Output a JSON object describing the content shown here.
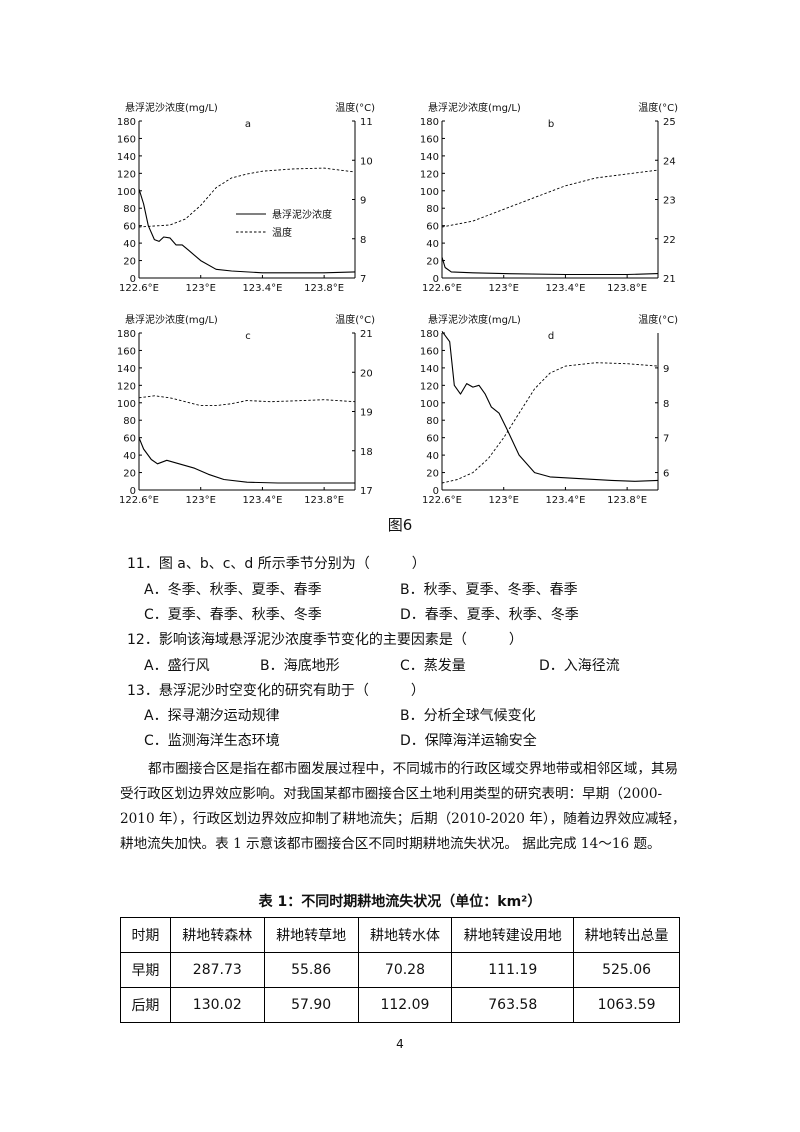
{
  "figure": {
    "caption": "图6",
    "left_axis_title": "悬浮泥沙浓度(mg/L)",
    "right_axis_title": "温度(°C)",
    "legend": {
      "solid": "悬浮泥沙浓度",
      "dashed": "温度"
    }
  },
  "chart_data": [
    {
      "type": "line",
      "panel": "a",
      "ylabel": "悬浮泥沙浓度(mg/L)",
      "y2label": "温度(°C)",
      "xlim": [
        122.6,
        124.0
      ],
      "ylim": [
        0,
        180
      ],
      "y2lim": [
        7,
        11
      ],
      "x_ticks": [
        "122.6°E",
        "123°E",
        "123.4°E",
        "123.8°E"
      ],
      "y_ticks": [
        "0",
        "20",
        "40",
        "60",
        "80",
        "100",
        "120",
        "140",
        "160",
        "180"
      ],
      "y2_ticks": [
        "7",
        "8",
        "9",
        "10",
        "11"
      ],
      "legend": [
        "悬浮泥沙浓度",
        "温度"
      ],
      "series": [
        {
          "name": "悬浮泥沙浓度",
          "axis": "left",
          "style": "solid",
          "points": [
            [
              122.6,
              102
            ],
            [
              122.63,
              85
            ],
            [
              122.66,
              60
            ],
            [
              122.7,
              44
            ],
            [
              122.73,
              42
            ],
            [
              122.76,
              47
            ],
            [
              122.8,
              46
            ],
            [
              122.84,
              38
            ],
            [
              122.88,
              38
            ],
            [
              122.92,
              32
            ],
            [
              123.0,
              20
            ],
            [
              123.1,
              10
            ],
            [
              123.2,
              8
            ],
            [
              123.4,
              6
            ],
            [
              123.6,
              6
            ],
            [
              123.8,
              6
            ],
            [
              124.0,
              7
            ]
          ]
        },
        {
          "name": "温度",
          "axis": "right",
          "style": "dashed",
          "points": [
            [
              122.6,
              8.3
            ],
            [
              122.8,
              8.35
            ],
            [
              122.9,
              8.5
            ],
            [
              123.0,
              8.85
            ],
            [
              123.1,
              9.3
            ],
            [
              123.2,
              9.55
            ],
            [
              123.3,
              9.65
            ],
            [
              123.4,
              9.72
            ],
            [
              123.6,
              9.78
            ],
            [
              123.8,
              9.8
            ],
            [
              124.0,
              9.7
            ]
          ]
        }
      ]
    },
    {
      "type": "line",
      "panel": "b",
      "ylabel": "悬浮泥沙浓度(mg/L)",
      "y2label": "温度(°C)",
      "xlim": [
        122.6,
        124.0
      ],
      "ylim": [
        0,
        180
      ],
      "y2lim": [
        21,
        25
      ],
      "x_ticks": [
        "122.6°E",
        "123°E",
        "123.4°E",
        "123.8°E"
      ],
      "y_ticks": [
        "0",
        "20",
        "40",
        "60",
        "80",
        "100",
        "120",
        "140",
        "160",
        "180"
      ],
      "y2_ticks": [
        "21",
        "22",
        "23",
        "24",
        "25"
      ],
      "series": [
        {
          "name": "悬浮泥沙浓度",
          "axis": "left",
          "style": "solid",
          "points": [
            [
              122.6,
              24
            ],
            [
              122.62,
              12
            ],
            [
              122.66,
              7
            ],
            [
              122.8,
              6
            ],
            [
              123.0,
              5
            ],
            [
              123.4,
              4
            ],
            [
              123.8,
              4
            ],
            [
              124.0,
              5
            ]
          ]
        },
        {
          "name": "温度",
          "axis": "right",
          "style": "dashed",
          "points": [
            [
              122.6,
              22.3
            ],
            [
              122.8,
              22.45
            ],
            [
              123.0,
              22.75
            ],
            [
              123.2,
              23.05
            ],
            [
              123.4,
              23.35
            ],
            [
              123.6,
              23.55
            ],
            [
              123.8,
              23.65
            ],
            [
              124.0,
              23.75
            ]
          ]
        }
      ]
    },
    {
      "type": "line",
      "panel": "c",
      "ylabel": "悬浮泥沙浓度(mg/L)",
      "y2label": "温度(°C)",
      "xlim": [
        122.6,
        124.0
      ],
      "ylim": [
        0,
        180
      ],
      "y2lim": [
        17,
        21
      ],
      "x_ticks": [
        "122.6°E",
        "123°E",
        "123.4°E",
        "123.8°E"
      ],
      "y_ticks": [
        "0",
        "20",
        "40",
        "60",
        "80",
        "100",
        "120",
        "140",
        "160",
        "180"
      ],
      "y2_ticks": [
        "17",
        "18",
        "19",
        "20",
        "21"
      ],
      "series": [
        {
          "name": "悬浮泥沙浓度",
          "axis": "left",
          "style": "solid",
          "points": [
            [
              122.6,
              60
            ],
            [
              122.63,
              47
            ],
            [
              122.68,
              35
            ],
            [
              122.72,
              30
            ],
            [
              122.78,
              34
            ],
            [
              122.86,
              30
            ],
            [
              122.96,
              25
            ],
            [
              123.05,
              18
            ],
            [
              123.15,
              12
            ],
            [
              123.3,
              9
            ],
            [
              123.5,
              8
            ],
            [
              123.8,
              8
            ],
            [
              124.0,
              8
            ]
          ]
        },
        {
          "name": "温度",
          "axis": "right",
          "style": "dashed",
          "points": [
            [
              122.6,
              19.35
            ],
            [
              122.7,
              19.4
            ],
            [
              122.8,
              19.35
            ],
            [
              122.9,
              19.25
            ],
            [
              123.0,
              19.15
            ],
            [
              123.1,
              19.15
            ],
            [
              123.2,
              19.2
            ],
            [
              123.3,
              19.28
            ],
            [
              123.45,
              19.25
            ],
            [
              123.6,
              19.27
            ],
            [
              123.8,
              19.3
            ],
            [
              124.0,
              19.25
            ]
          ]
        }
      ]
    },
    {
      "type": "line",
      "panel": "d",
      "ylabel": "悬浮泥沙浓度(mg/L)",
      "y2label": "温度(°C)",
      "xlim": [
        122.6,
        124.0
      ],
      "ylim": [
        0,
        180
      ],
      "y2lim": [
        5.5,
        10
      ],
      "x_ticks": [
        "122.6°E",
        "123°E",
        "123.4°E",
        "123.8°E"
      ],
      "y_ticks": [
        "0",
        "20",
        "40",
        "60",
        "80",
        "100",
        "120",
        "140",
        "160",
        "180"
      ],
      "y2_ticks": [
        "6",
        "7",
        "8",
        "9"
      ],
      "series": [
        {
          "name": "悬浮泥沙浓度",
          "axis": "left",
          "style": "solid",
          "points": [
            [
              122.6,
              182
            ],
            [
              122.65,
              170
            ],
            [
              122.68,
              120
            ],
            [
              122.72,
              110
            ],
            [
              122.76,
              122
            ],
            [
              122.8,
              118
            ],
            [
              122.84,
              120
            ],
            [
              122.88,
              110
            ],
            [
              122.92,
              95
            ],
            [
              122.97,
              88
            ],
            [
              123.02,
              70
            ],
            [
              123.1,
              40
            ],
            [
              123.2,
              20
            ],
            [
              123.3,
              15
            ],
            [
              123.5,
              13
            ],
            [
              123.7,
              11
            ],
            [
              123.85,
              10
            ],
            [
              124.0,
              11
            ]
          ]
        },
        {
          "name": "温度",
          "axis": "right",
          "style": "dashed",
          "points": [
            [
              122.6,
              5.7
            ],
            [
              122.7,
              5.8
            ],
            [
              122.8,
              6.0
            ],
            [
              122.9,
              6.4
            ],
            [
              123.0,
              7.0
            ],
            [
              123.1,
              7.7
            ],
            [
              123.2,
              8.4
            ],
            [
              123.3,
              8.85
            ],
            [
              123.4,
              9.05
            ],
            [
              123.6,
              9.15
            ],
            [
              123.8,
              9.12
            ],
            [
              124.0,
              9.05
            ]
          ]
        }
      ]
    }
  ],
  "questions": [
    {
      "stem": "11．图 a、b、c、d 所示季节分别为（　　　）",
      "options": [
        "A．冬季、秋季、夏季、春季",
        "B．秋季、夏季、冬季、春季",
        "C．夏季、春季、秋季、冬季",
        "D．春季、夏季、秋季、冬季"
      ]
    },
    {
      "stem": "12．影响该海域悬浮泥沙浓度季节变化的主要因素是（　　　）",
      "options": [
        "A．盛行风",
        "B．海底地形",
        "C．蒸发量",
        "D．入海径流"
      ]
    },
    {
      "stem": "13．悬浮泥沙时空变化的研究有助于（　　　）",
      "options": [
        "A．探寻潮汐运动规律",
        "B．分析全球气候变化",
        "C．监测海洋生态环境",
        "D．保障海洋运输安全"
      ]
    }
  ],
  "passage": "都市圈接合区是指在都市圈发展过程中，不同城市的行政区域交界地带或相邻区域，其易受行政区划边界效应影响。对我国某都市圈接合区土地利用类型的研究表明：早期（2000-2010 年），行政区划边界效应抑制了耕地流失；后期（2010-2020 年），随着边界效应减轻，耕地流失加快。表 1 示意该都市圈接合区不同时期耕地流失状况。 据此完成 14～16 题。",
  "table": {
    "title": "表 1：不同时期耕地流失状况（单位：km²）",
    "headers": [
      "时期",
      "耕地转森林",
      "耕地转草地",
      "耕地转水体",
      "耕地转建设用地",
      "耕地转出总量"
    ],
    "rows": [
      [
        "早期",
        "287.73",
        "55.86",
        "70.28",
        "111.19",
        "525.06"
      ],
      [
        "后期",
        "130.02",
        "57.90",
        "112.09",
        "763.58",
        "1063.59"
      ]
    ]
  },
  "page_number": "4"
}
